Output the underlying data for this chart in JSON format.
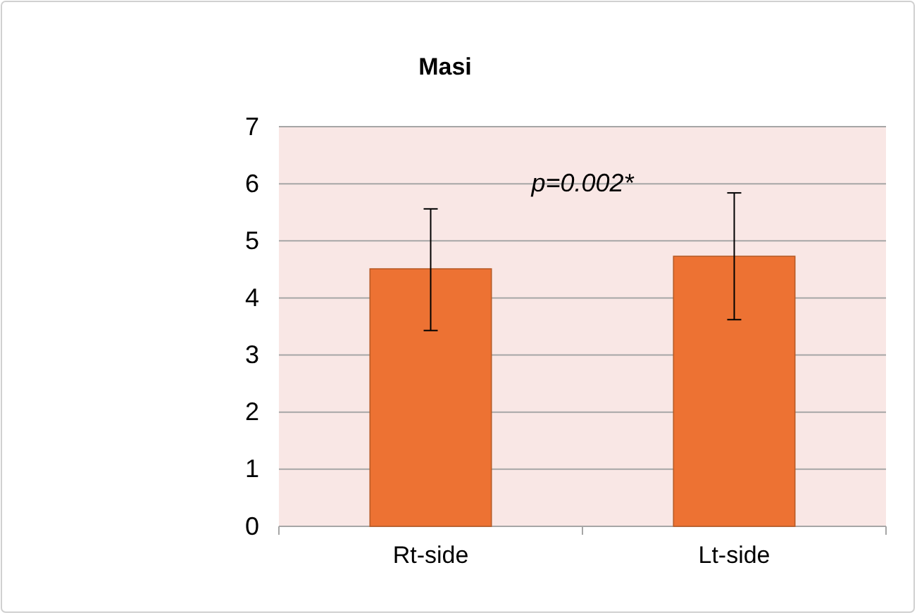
{
  "chart_data": {
    "type": "bar",
    "title": "Masi",
    "categories": [
      "Rt-side",
      "Lt-side"
    ],
    "values": [
      4.51,
      4.73
    ],
    "color": "#ed7233",
    "errors": [
      [
        3.43,
        5.56
      ],
      [
        3.62,
        5.84
      ]
    ],
    "ylim": [
      0,
      7
    ],
    "yticks": [
      0,
      1,
      2,
      3,
      4,
      5,
      6,
      7
    ],
    "grid": "y",
    "annotations": [
      "p=0.002*"
    ]
  }
}
